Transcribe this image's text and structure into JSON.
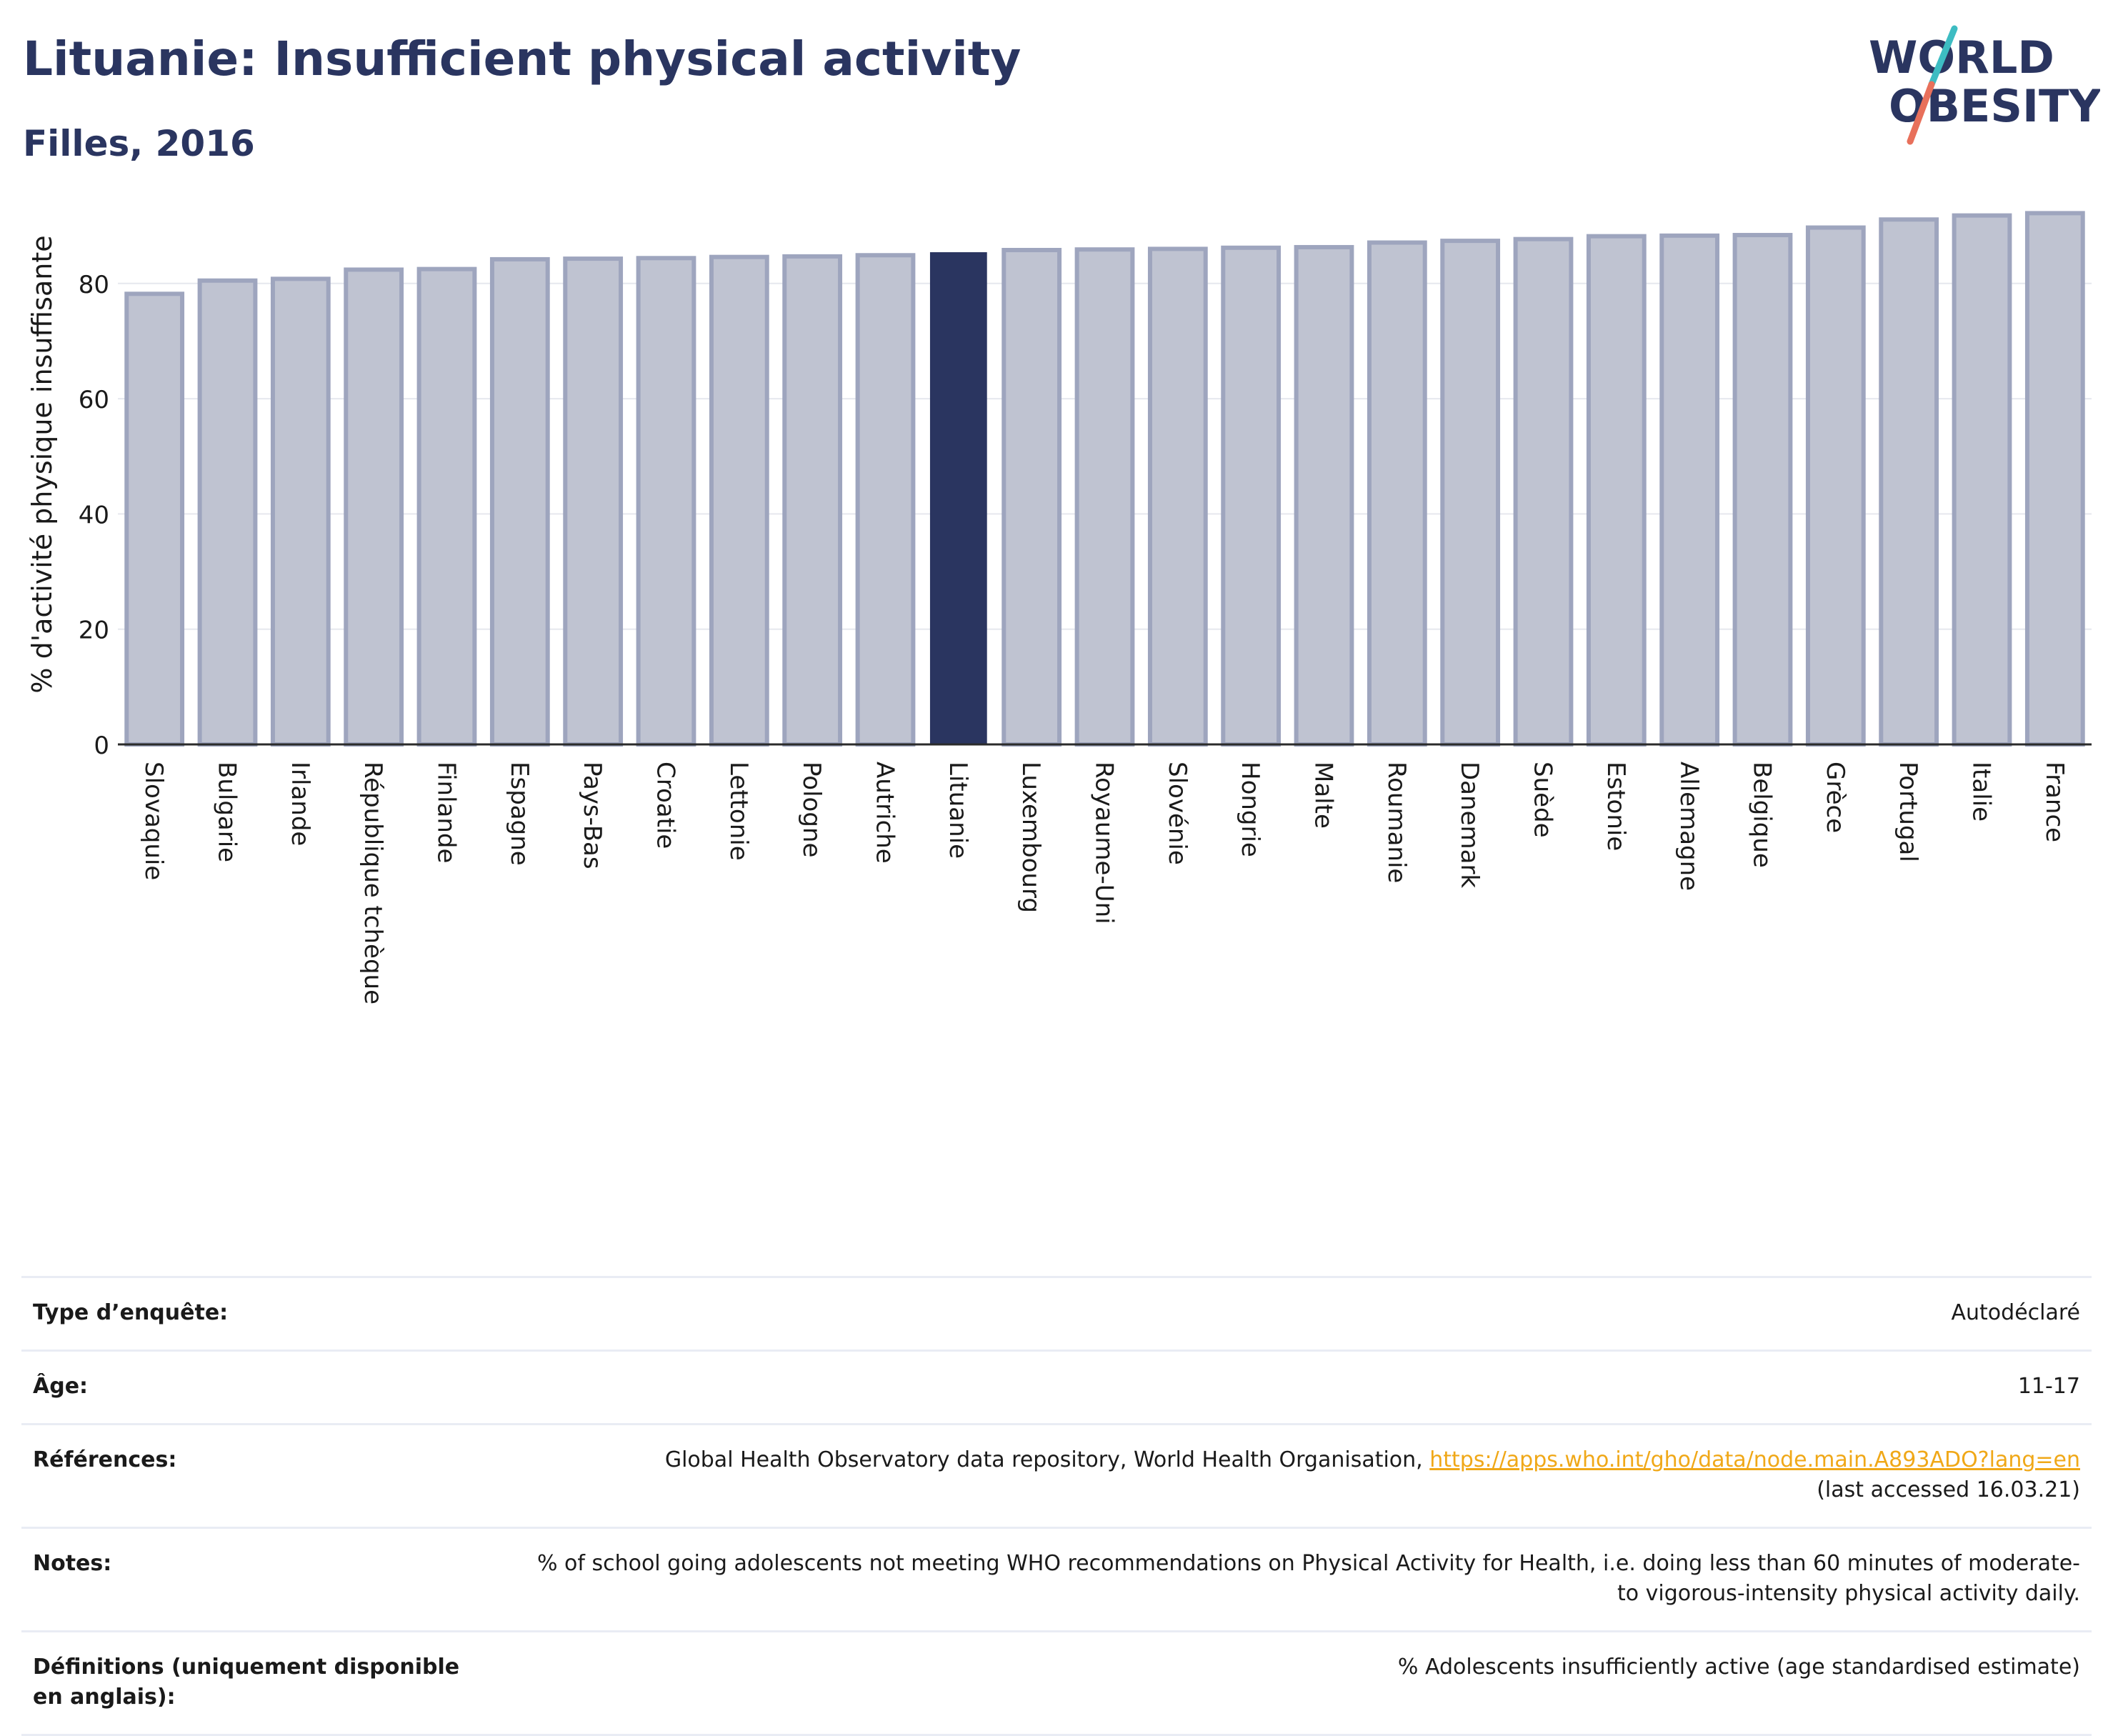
{
  "header": {
    "title": "Lituanie: Insufficient physical activity",
    "subtitle": "Filles, 2016"
  },
  "logo": {
    "line1": "WORLD",
    "line2": "OBESITY",
    "accent_colors": [
      "#3dbcc2",
      "#e8705b"
    ]
  },
  "colors": {
    "highlight_bar": "#2a3560",
    "other_bar_fill": "#bfc3d1",
    "other_bar_stroke": "#9ea5be",
    "link": "#f0a818"
  },
  "chart_data": {
    "type": "bar",
    "title": "",
    "ylabel": "% d'activité physique insuffisante",
    "xlabel": "",
    "ylim": [
      0,
      92
    ],
    "yticks": [
      0,
      20,
      40,
      60,
      80
    ],
    "grid": true,
    "highlight": "Lituanie",
    "categories": [
      "Slovaquie",
      "Bulgarie",
      "Irlande",
      "République tchèque",
      "Finlande",
      "Espagne",
      "Pays-Bas",
      "Croatie",
      "Lettonie",
      "Pologne",
      "Autriche",
      "Lituanie",
      "Luxembourg",
      "Royaume-Uni",
      "Slovénie",
      "Hongrie",
      "Malte",
      "Roumanie",
      "Danemark",
      "Suède",
      "Estonie",
      "Allemagne",
      "Belgique",
      "Grèce",
      "Portugal",
      "Italie",
      "France"
    ],
    "values": [
      78.2,
      80.5,
      80.8,
      82.4,
      82.5,
      84.2,
      84.3,
      84.4,
      84.6,
      84.7,
      84.9,
      85.3,
      85.8,
      85.9,
      86.0,
      86.2,
      86.3,
      87.1,
      87.4,
      87.7,
      88.2,
      88.3,
      88.4,
      89.7,
      91.1,
      91.8,
      92.2
    ]
  },
  "info": {
    "rows": [
      {
        "label": "Type d’enquête:",
        "value": "Autodéclaré"
      },
      {
        "label": "Âge:",
        "value": "11-17"
      },
      {
        "label": "Références:",
        "value": "Global Health Observatory data repository, World Health Organisation,",
        "link": "https://apps.who.int/gho/data/node.main.A893ADO?lang=en",
        "value2": "(last accessed 16.03.21)"
      },
      {
        "label": "Notes:",
        "value": "% of school going adolescents not meeting WHO recommendations on Physical Activity for Health, i.e. doing less than 60 minutes of moderate- to vigorous-intensity physical activity daily."
      },
      {
        "label": "Définitions (uniquement disponible en anglais):",
        "value": "% Adolescents insufficiently active (age standardised estimate)"
      }
    ]
  }
}
